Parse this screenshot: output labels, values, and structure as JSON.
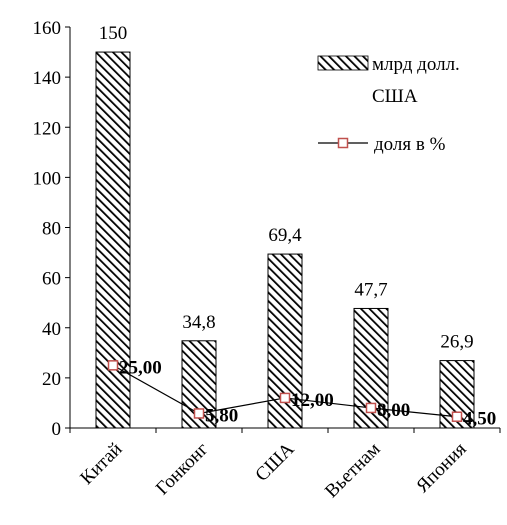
{
  "chart_data": {
    "type": "bar",
    "categories": [
      "Китай",
      "Гонконг",
      "США",
      "Вьетнам",
      "Япония"
    ],
    "ylim": [
      0,
      160
    ],
    "yticks": [
      0,
      20,
      40,
      60,
      80,
      100,
      120,
      140,
      160
    ],
    "grid": false,
    "legend_position": "top-right",
    "series": [
      {
        "name": "млрд долл. США",
        "name_lines": [
          "млрд долл.",
          "США"
        ],
        "kind": "bar",
        "pattern": "diagonal-hatch",
        "values": [
          150,
          34.8,
          69.4,
          47.7,
          26.9
        ],
        "labels": [
          "150",
          "34,8",
          "69,4",
          "47,7",
          "26,9"
        ]
      },
      {
        "name": "доля в %",
        "kind": "line",
        "color": "#c0504d",
        "values": [
          25.0,
          5.8,
          12.0,
          8.0,
          4.5
        ],
        "labels": [
          "25,00",
          "5,80",
          "12,00",
          "8,00",
          "4,50"
        ]
      }
    ]
  }
}
